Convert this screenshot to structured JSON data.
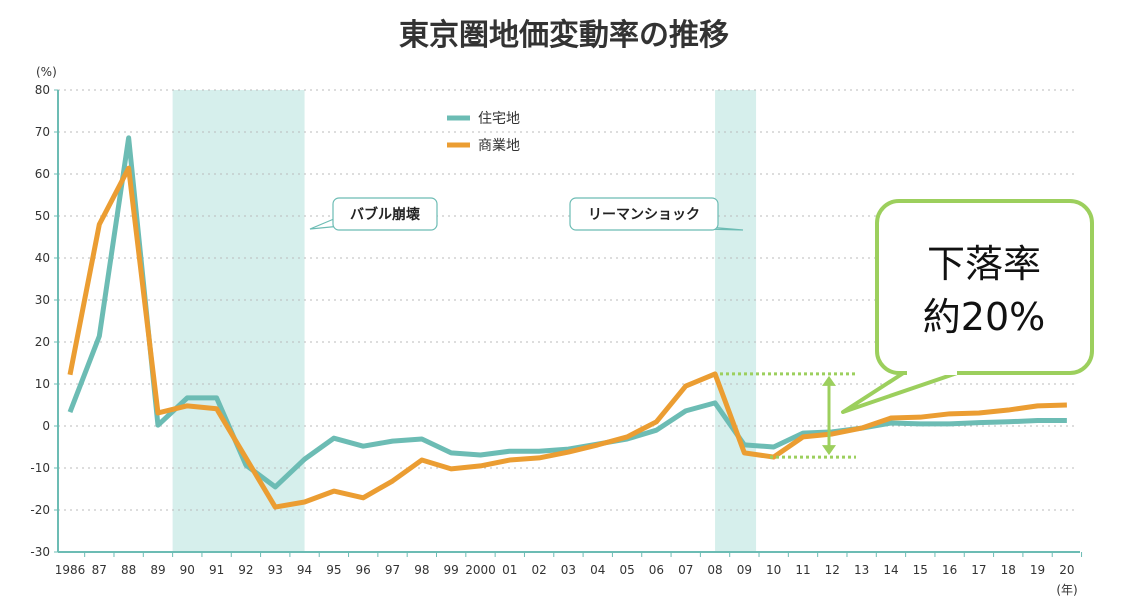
{
  "chart_data": {
    "type": "line",
    "title": "東京圏地価変動率の推移",
    "ylabel": "(%)",
    "xlabel": "(年)",
    "ylim": [
      -30,
      80
    ],
    "yticks": [
      80,
      70,
      60,
      50,
      40,
      30,
      20,
      10,
      0,
      -10,
      -20,
      -30
    ],
    "grid": true,
    "legend_placement": "top-center",
    "x": [
      1986,
      1987,
      1988,
      1989,
      1990,
      1991,
      1992,
      1993,
      1994,
      1995,
      1996,
      1997,
      1998,
      1999,
      2000,
      2001,
      2002,
      2003,
      2004,
      2005,
      2006,
      2007,
      2008,
      2009,
      2010,
      2011,
      2012,
      2013,
      2014,
      2015,
      2016,
      2017,
      2018,
      2019,
      2020
    ],
    "xtick_labels": [
      "1986",
      "87",
      "88",
      "89",
      "90",
      "91",
      "92",
      "93",
      "94",
      "95",
      "96",
      "97",
      "98",
      "99",
      "2000",
      "01",
      "02",
      "03",
      "04",
      "05",
      "06",
      "07",
      "08",
      "09",
      "10",
      "11",
      "12",
      "13",
      "14",
      "15",
      "16",
      "17",
      "18",
      "19",
      "20"
    ],
    "series": [
      {
        "name": "住宅地",
        "color": "#6cbcb4",
        "values": [
          3.3,
          21.4,
          68.6,
          0.2,
          6.7,
          6.7,
          -9.3,
          -14.5,
          -7.9,
          -2.9,
          -4.8,
          -3.6,
          -3.1,
          -6.4,
          -6.9,
          -6.0,
          -6.0,
          -5.5,
          -4.3,
          -3.1,
          -1.0,
          3.6,
          5.5,
          -4.5,
          -5.0,
          -1.7,
          -1.4,
          -0.5,
          0.7,
          0.5,
          0.5,
          0.8,
          1.0,
          1.3,
          1.3
        ]
      },
      {
        "name": "商業地",
        "color": "#eb9d32",
        "values": [
          12.2,
          48.0,
          61.4,
          3.1,
          4.8,
          4.1,
          -7.6,
          -19.3,
          -18.1,
          -15.5,
          -17.1,
          -13.1,
          -8.1,
          -10.2,
          -9.5,
          -8.1,
          -7.6,
          -6.2,
          -4.5,
          -2.6,
          1.0,
          9.5,
          12.4,
          -6.4,
          -7.4,
          -2.6,
          -1.9,
          -0.5,
          1.9,
          2.1,
          2.9,
          3.1,
          3.8,
          4.8,
          5.0
        ]
      }
    ],
    "shaded_periods": [
      {
        "from": 1989.5,
        "to": 1994.0,
        "label": "バブル崩壊",
        "color": "#d6efec"
      },
      {
        "from": 2008.0,
        "to": 2009.4,
        "label": "リーマンショック",
        "color": "#d6efec"
      }
    ],
    "callout": {
      "line1": "下落率",
      "line2": "約20%",
      "color": "#9ccf5d",
      "from_value": 12.4,
      "to_value": -7.4
    }
  }
}
